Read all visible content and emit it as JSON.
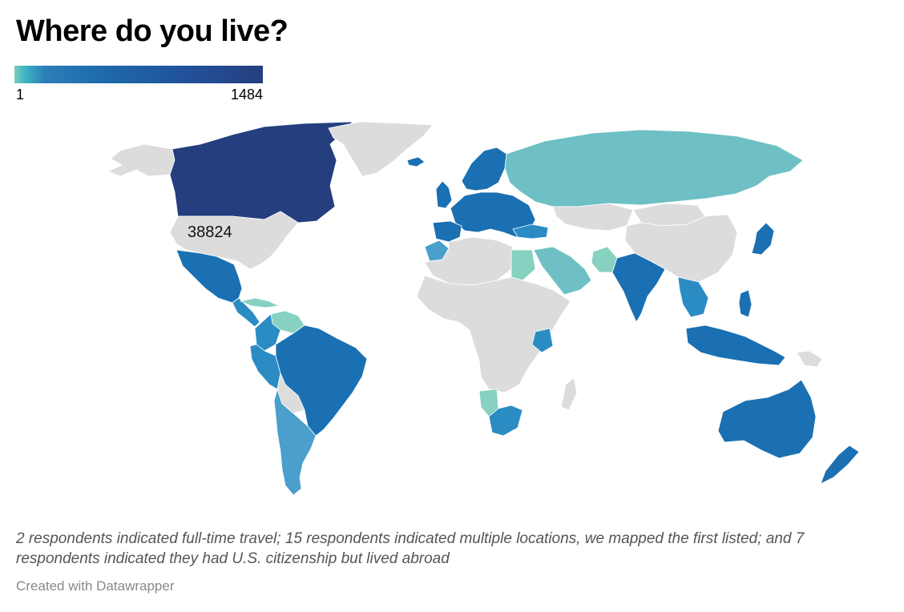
{
  "title": "Where do you live?",
  "legend": {
    "min": "1",
    "max": "1484"
  },
  "map": {
    "us_value": "38824",
    "colors": {
      "no_data": "#dcdcdc",
      "c1": "#86d1c0",
      "c2": "#6ec0c4",
      "c3": "#4a9fcc",
      "c4": "#2b8cc4",
      "c5": "#1a70b2",
      "c6": "#253f7e"
    },
    "regions": [
      {
        "name": "canada",
        "level": "c6"
      },
      {
        "name": "usa",
        "level": "none"
      },
      {
        "name": "alaska",
        "level": "none"
      },
      {
        "name": "greenland",
        "level": "none"
      },
      {
        "name": "mexico",
        "level": "c5"
      },
      {
        "name": "central-america",
        "level": "c4"
      },
      {
        "name": "caribbean",
        "level": "c1"
      },
      {
        "name": "colombia",
        "level": "c4"
      },
      {
        "name": "venezuela",
        "level": "c1"
      },
      {
        "name": "peru",
        "level": "c4"
      },
      {
        "name": "brazil",
        "level": "c5"
      },
      {
        "name": "bolivia",
        "level": "none"
      },
      {
        "name": "chile-argentina",
        "level": "c3"
      },
      {
        "name": "iceland",
        "level": "c5"
      },
      {
        "name": "uk",
        "level": "c5"
      },
      {
        "name": "scandinavia",
        "level": "c5"
      },
      {
        "name": "europe",
        "level": "c5"
      },
      {
        "name": "iberia",
        "level": "c5"
      },
      {
        "name": "turkey",
        "level": "c4"
      },
      {
        "name": "russia",
        "level": "c2"
      },
      {
        "name": "kazakhstan",
        "level": "none"
      },
      {
        "name": "china",
        "level": "none"
      },
      {
        "name": "mongolia",
        "level": "none"
      },
      {
        "name": "japan",
        "level": "c5"
      },
      {
        "name": "india",
        "level": "c5"
      },
      {
        "name": "pakistan",
        "level": "c1"
      },
      {
        "name": "arabia",
        "level": "c2"
      },
      {
        "name": "egypt",
        "level": "c1"
      },
      {
        "name": "north-africa",
        "level": "none"
      },
      {
        "name": "morocco",
        "level": "c3"
      },
      {
        "name": "africa",
        "level": "none"
      },
      {
        "name": "kenya",
        "level": "c4"
      },
      {
        "name": "southern-africa",
        "level": "c4"
      },
      {
        "name": "namibia",
        "level": "c1"
      },
      {
        "name": "madagascar",
        "level": "none"
      },
      {
        "name": "southeast-asia",
        "level": "c4"
      },
      {
        "name": "indonesia",
        "level": "c5"
      },
      {
        "name": "philippines",
        "level": "c5"
      },
      {
        "name": "papua",
        "level": "none"
      },
      {
        "name": "australia",
        "level": "c5"
      },
      {
        "name": "new-zealand",
        "level": "c5"
      }
    ]
  },
  "note": "2 respondents indicated full-time travel; 15 respondents indicated multiple locations, we mapped the first listed; and 7 respondents indicated they had U.S. citizenship but lived abroad",
  "credit": "Created with Datawrapper"
}
